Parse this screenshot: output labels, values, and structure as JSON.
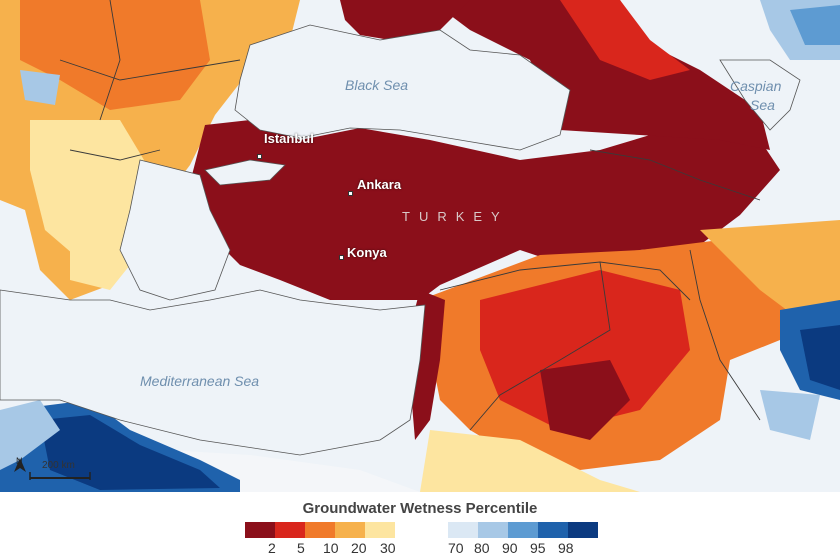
{
  "map": {
    "seas": [
      {
        "id": "black-sea",
        "text": "Black Sea"
      },
      {
        "id": "caspian-sea-1",
        "text": "Caspian"
      },
      {
        "id": "caspian-sea-2",
        "text": "Sea"
      },
      {
        "id": "mediterranean-sea",
        "text": "Mediterranean Sea"
      }
    ],
    "cities": [
      {
        "id": "istanbul",
        "text": "Istanbul"
      },
      {
        "id": "ankara",
        "text": "Ankara"
      },
      {
        "id": "konya",
        "text": "Konya"
      }
    ],
    "country": "TURKEY",
    "scale_bar": "200 km",
    "north_arrow": "N",
    "colors": {
      "water": "#eef3f8",
      "dry_2": "#8b0f1a",
      "dry_5": "#d9261c",
      "dry_10": "#f07a2a",
      "dry_20": "#f6b14c",
      "dry_30": "#fde5a0",
      "neutral": "#f4f6f9",
      "wet_70": "#dbe8f4",
      "wet_80": "#a7c8e6",
      "wet_90": "#5d9bd2",
      "wet_95": "#1f62ac",
      "wet_98": "#0b3a80"
    }
  },
  "legend": {
    "title": "Groundwater Wetness Percentile",
    "dry_colors": [
      "#8b0f1a",
      "#d9261c",
      "#f07a2a",
      "#f6b14c",
      "#fde5a0"
    ],
    "wet_colors": [
      "#dbe8f4",
      "#a7c8e6",
      "#5d9bd2",
      "#1f62ac",
      "#0b3a80"
    ],
    "dry_ticks": [
      "2",
      "5",
      "10",
      "20",
      "30"
    ],
    "wet_ticks": [
      "70",
      "80",
      "90",
      "95",
      "98"
    ]
  }
}
